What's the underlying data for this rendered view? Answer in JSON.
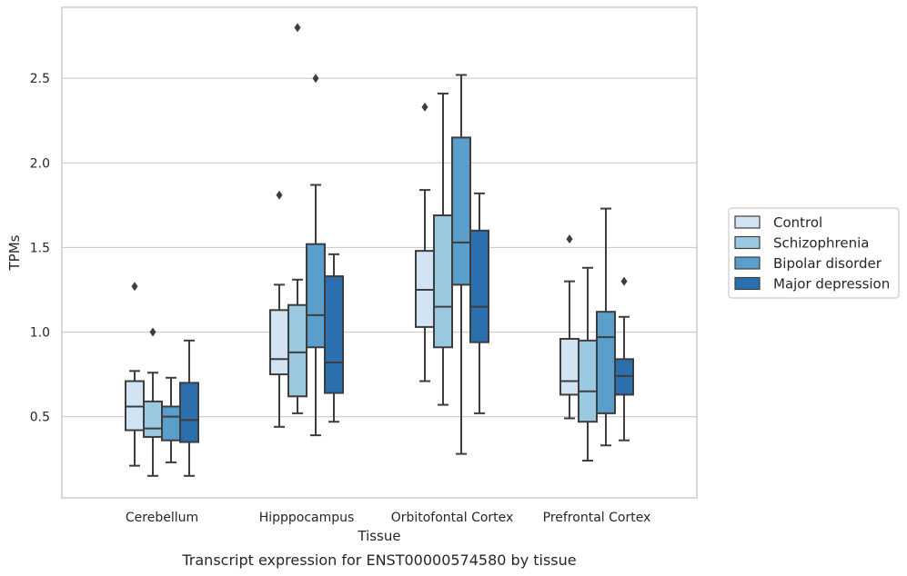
{
  "chart_data": {
    "type": "box",
    "title": "",
    "caption": "Transcript expression for ENST00000574580 by tissue",
    "xlabel": "Tissue",
    "ylabel": "TPMs",
    "ylim": [
      0.02,
      2.92
    ],
    "yticks": [
      0.5,
      1.0,
      1.5,
      2.0,
      2.5
    ],
    "ytick_labels": [
      "0.5",
      "1.0",
      "1.5",
      "2.0",
      "2.5"
    ],
    "grid": "horizontal",
    "legend_position": "right",
    "categories": [
      "Cerebellum",
      "Hipppocampus",
      "Orbitofontal Cortex",
      "Prefrontal Cortex"
    ],
    "series": [
      {
        "name": "Control",
        "color": "#d2e3f3",
        "boxes": [
          {
            "whislo": 0.21,
            "q1": 0.42,
            "med": 0.56,
            "q3": 0.71,
            "whishi": 0.77,
            "fliers": [
              1.27
            ]
          },
          {
            "whislo": 0.44,
            "q1": 0.75,
            "med": 0.84,
            "q3": 1.13,
            "whishi": 1.28,
            "fliers": [
              1.81
            ]
          },
          {
            "whislo": 0.71,
            "q1": 1.03,
            "med": 1.25,
            "q3": 1.48,
            "whishi": 1.84,
            "fliers": [
              2.33
            ]
          },
          {
            "whislo": 0.49,
            "q1": 0.63,
            "med": 0.71,
            "q3": 0.96,
            "whishi": 1.3,
            "fliers": [
              1.55
            ]
          }
        ]
      },
      {
        "name": "Schizophrenia",
        "color": "#9ac8e0",
        "boxes": [
          {
            "whislo": 0.15,
            "q1": 0.38,
            "med": 0.43,
            "q3": 0.59,
            "whishi": 0.76,
            "fliers": [
              1.0
            ]
          },
          {
            "whislo": 0.52,
            "q1": 0.62,
            "med": 0.88,
            "q3": 1.16,
            "whishi": 1.31,
            "fliers": [
              2.8
            ]
          },
          {
            "whislo": 0.57,
            "q1": 0.91,
            "med": 1.15,
            "q3": 1.69,
            "whishi": 2.41,
            "fliers": []
          },
          {
            "whislo": 0.24,
            "q1": 0.47,
            "med": 0.65,
            "q3": 0.95,
            "whishi": 1.38,
            "fliers": []
          }
        ]
      },
      {
        "name": "Bipolar disorder",
        "color": "#5a9fcc",
        "boxes": [
          {
            "whislo": 0.23,
            "q1": 0.36,
            "med": 0.5,
            "q3": 0.56,
            "whishi": 0.73,
            "fliers": []
          },
          {
            "whislo": 0.39,
            "q1": 0.91,
            "med": 1.1,
            "q3": 1.52,
            "whishi": 1.87,
            "fliers": [
              2.5
            ]
          },
          {
            "whislo": 0.28,
            "q1": 1.28,
            "med": 1.53,
            "q3": 2.15,
            "whishi": 2.52,
            "fliers": []
          },
          {
            "whislo": 0.33,
            "q1": 0.52,
            "med": 0.97,
            "q3": 1.12,
            "whishi": 1.73,
            "fliers": []
          }
        ]
      },
      {
        "name": "Major depression",
        "color": "#2b6fae",
        "boxes": [
          {
            "whislo": 0.15,
            "q1": 0.35,
            "med": 0.48,
            "q3": 0.7,
            "whishi": 0.95,
            "fliers": []
          },
          {
            "whislo": 0.47,
            "q1": 0.64,
            "med": 0.82,
            "q3": 1.33,
            "whishi": 1.46,
            "fliers": []
          },
          {
            "whislo": 0.52,
            "q1": 0.94,
            "med": 1.15,
            "q3": 1.6,
            "whishi": 1.82,
            "fliers": []
          },
          {
            "whislo": 0.36,
            "q1": 0.63,
            "med": 0.74,
            "q3": 0.84,
            "whishi": 1.09,
            "fliers": [
              1.3
            ]
          }
        ]
      }
    ]
  },
  "colors": {
    "background": "#ffffff",
    "grid": "#cccccc",
    "frame": "#cccccc",
    "line": "#3d3d3d",
    "text": "#262626"
  }
}
